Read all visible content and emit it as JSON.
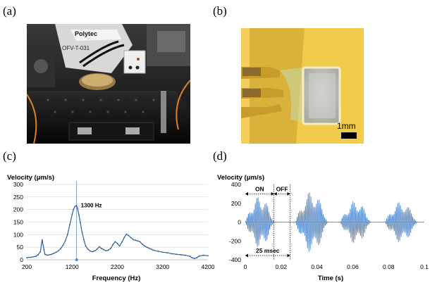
{
  "panels": {
    "a": "(a)",
    "b": "(b)",
    "c": "(c)",
    "d": "(d)"
  },
  "photo_a": {
    "brand": "Polytec",
    "model": "OFV-T-031"
  },
  "photo_b": {
    "scale_bar": "1mm"
  },
  "chart_data": [
    {
      "type": "line",
      "ylabel": "Velocity (μm/s)",
      "xlabel": "Frequency (Hz)",
      "xlim": [
        200,
        4200
      ],
      "ylim": [
        0,
        300
      ],
      "xticks": [
        "200",
        "1200",
        "2200",
        "3200",
        "4200"
      ],
      "yticks": [
        "0",
        "50",
        "100",
        "150",
        "200",
        "250",
        "300"
      ],
      "annotation": "1300 Hz",
      "peak": {
        "x": 1300,
        "y": 215
      },
      "series": [
        {
          "x": [
            200,
            300,
            400,
            450,
            500,
            540,
            580,
            600,
            650,
            700,
            750,
            800,
            850,
            900,
            950,
            1000,
            1050,
            1100,
            1150,
            1200,
            1230,
            1260,
            1290,
            1300,
            1320,
            1350,
            1380,
            1420,
            1460,
            1500,
            1550,
            1600,
            1650,
            1700,
            1750,
            1800,
            1850,
            1900,
            1950,
            2000,
            2050,
            2100,
            2150,
            2200,
            2250,
            2300,
            2350,
            2400,
            2450,
            2500,
            2550,
            2600,
            2650,
            2700,
            2750,
            2800,
            2850,
            2900,
            2950,
            3000,
            3100,
            3200,
            3300,
            3400,
            3500,
            3600,
            3700,
            3800,
            3850,
            3900,
            3950,
            4000,
            4100,
            4200
          ],
          "y": [
            8,
            10,
            14,
            20,
            32,
            80,
            40,
            22,
            18,
            20,
            22,
            26,
            30,
            36,
            45,
            58,
            75,
            100,
            140,
            180,
            200,
            212,
            215,
            214,
            205,
            180,
            150,
            110,
            80,
            55,
            42,
            35,
            32,
            35,
            42,
            52,
            45,
            40,
            36,
            38,
            45,
            60,
            72,
            65,
            55,
            70,
            88,
            102,
            96,
            88,
            80,
            78,
            75,
            72,
            62,
            55,
            50,
            46,
            42,
            38,
            34,
            30,
            28,
            24,
            22,
            20,
            18,
            14,
            8,
            5,
            8,
            14,
            18,
            16
          ]
        }
      ]
    },
    {
      "type": "line",
      "ylabel": "Velocity (μm/s)",
      "xlabel": "Time (s)",
      "xlim": [
        0,
        0.1
      ],
      "ylim": [
        -400,
        400
      ],
      "xticks": [
        "0",
        "0.02",
        "0.04",
        "0.06",
        "0.08",
        "0.1"
      ],
      "yticks": [
        "400",
        "200",
        "0",
        "-200",
        "-400"
      ],
      "annotations": [
        "ON",
        "OFF",
        "25 msec"
      ],
      "on_interval": [
        0,
        0.016
      ],
      "off_interval": [
        0.016,
        0.025
      ],
      "period_interval": [
        0,
        0.025
      ],
      "carrier_frequency_hz": 1300,
      "bursts": [
        {
          "start": 0.0,
          "end": 0.016,
          "amplitude": 280
        },
        {
          "start": 0.028,
          "end": 0.046,
          "amplitude": 330
        },
        {
          "start": 0.053,
          "end": 0.07,
          "amplitude": 230
        },
        {
          "start": 0.078,
          "end": 0.096,
          "amplitude": 220
        }
      ]
    }
  ]
}
